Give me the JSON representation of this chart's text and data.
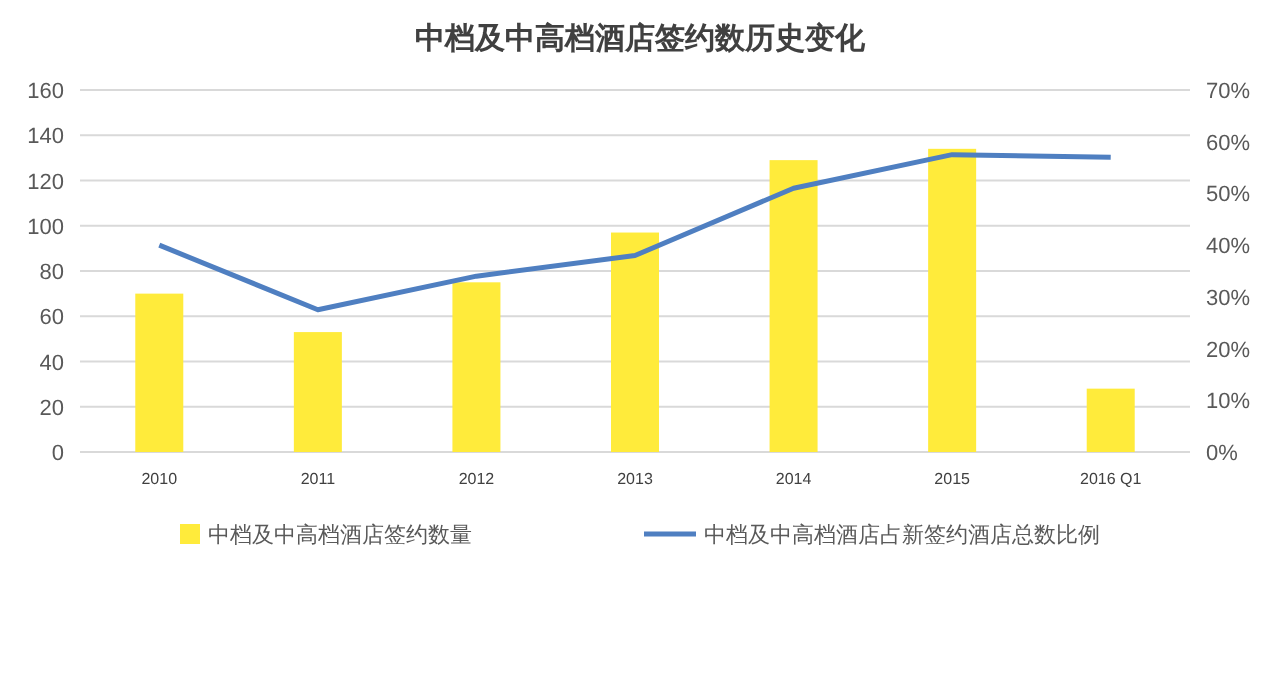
{
  "chart_data": {
    "type": "bar",
    "title": "中档及中高档酒店签约数历史变化",
    "categories": [
      "2010",
      "2011",
      "2012",
      "2013",
      "2014",
      "2015",
      "2016 Q1"
    ],
    "series": [
      {
        "name": "中档及中高档酒店签约数量",
        "color": "#ffeb3b",
        "values": [
          70,
          53,
          75,
          97,
          129,
          134,
          28
        ]
      },
      {
        "name": "中档及中高档酒店占新签约酒店总数比例",
        "type": "line",
        "axis": "y2",
        "color": "#4f7fc1",
        "values": [
          40,
          27.5,
          34,
          38,
          51,
          57.5,
          57
        ]
      }
    ],
    "ylim": [
      0,
      160
    ],
    "yticks": [
      0,
      20,
      40,
      60,
      80,
      100,
      120,
      140,
      160
    ],
    "y2lim": [
      0,
      70
    ],
    "y2ticks": [
      {
        "value": 0,
        "label": "0%"
      },
      {
        "value": 10,
        "label": "10%"
      },
      {
        "value": 20,
        "label": "20%"
      },
      {
        "value": 30,
        "label": "30%"
      },
      {
        "value": 40,
        "label": "40%"
      },
      {
        "value": 50,
        "label": "50%"
      },
      {
        "value": 60,
        "label": "60%"
      },
      {
        "value": 70,
        "label": "70%"
      }
    ],
    "grid": "y",
    "legend": "bottom",
    "marker": "none",
    "line_style": "solid"
  }
}
